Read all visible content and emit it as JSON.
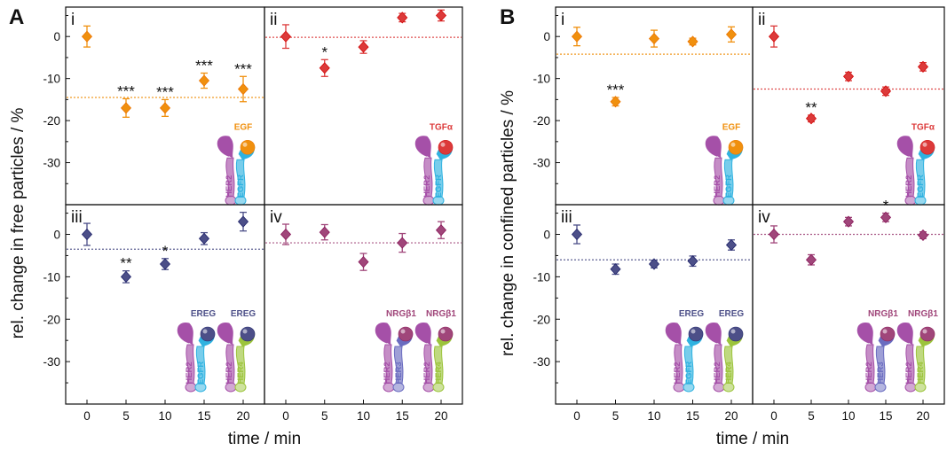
{
  "colors": {
    "EGF": "#f0900e",
    "TGF": "#dc3a3a",
    "EREG": "#4c4f88",
    "NRG": "#a0467a",
    "HER2": "#a550a8",
    "EGFR": "#2fb2e0",
    "HER3": "#6a6cc0",
    "HER4": "#9cc43c"
  },
  "figure": {
    "A": {
      "letter": "A",
      "ylabel": "rel. change in free particles / %"
    },
    "B": {
      "letter": "B",
      "ylabel": "rel. change in confined particles / %"
    },
    "xlabel": "time / min",
    "xticks": [
      0,
      5,
      10,
      15,
      20
    ],
    "yticks_top": [
      0,
      -10,
      -20,
      -30
    ],
    "yticks_bottom": [
      0,
      -10,
      -20,
      -30
    ],
    "receptor_labels": {
      "HER2": "HER2",
      "EGFR": "EGFR",
      "HER3": "HER3",
      "HER4": "HER4"
    }
  },
  "chart_data": [
    {
      "type": "scatter",
      "panel": "A",
      "roman": "i",
      "ligand": "EGF",
      "color_key": "EGF",
      "x": [
        0,
        5,
        10,
        15,
        20
      ],
      "y": [
        0,
        -17,
        -17,
        -10.5,
        -12.5
      ],
      "err": [
        2.5,
        2.2,
        2,
        1.8,
        3
      ],
      "significance": [
        "",
        "***",
        "***",
        "***",
        "***"
      ],
      "reference_line": -14.5,
      "ylim": [
        -40,
        7
      ],
      "receptors": [
        [
          "HER2",
          "EGFR"
        ]
      ]
    },
    {
      "type": "scatter",
      "panel": "A",
      "roman": "ii",
      "ligand": "TGFα",
      "color_key": "TGF",
      "x": [
        0,
        5,
        10,
        15,
        20
      ],
      "y": [
        0,
        -7.5,
        -2.5,
        4.5,
        5
      ],
      "err": [
        2.8,
        2,
        1.5,
        1,
        1.3
      ],
      "significance": [
        "",
        "*",
        "",
        "",
        ""
      ],
      "reference_line": -0.2,
      "ylim": [
        -40,
        7
      ],
      "receptors": [
        [
          "HER2",
          "EGFR"
        ]
      ]
    },
    {
      "type": "scatter",
      "panel": "A",
      "roman": "iii",
      "ligand": "EREG",
      "color_key": "EREG",
      "x": [
        0,
        5,
        10,
        15,
        20
      ],
      "y": [
        0,
        -10,
        -7,
        -1,
        3
      ],
      "err": [
        2.6,
        1.4,
        1.3,
        1.4,
        2.2
      ],
      "significance": [
        "",
        "**",
        "*",
        "",
        ""
      ],
      "reference_line": -3.5,
      "ylim": [
        -40,
        7
      ],
      "receptors": [
        [
          "HER2",
          "EGFR"
        ],
        [
          "HER2",
          "HER4"
        ]
      ]
    },
    {
      "type": "scatter",
      "panel": "A",
      "roman": "iv",
      "ligand": "NRGβ1",
      "color_key": "NRG",
      "x": [
        0,
        5,
        10,
        15,
        20
      ],
      "y": [
        0,
        0.5,
        -6.5,
        -2,
        1
      ],
      "err": [
        2.4,
        1.8,
        2,
        2.2,
        2
      ],
      "significance": [
        "",
        "",
        "",
        "",
        ""
      ],
      "reference_line": -2,
      "ylim": [
        -40,
        7
      ],
      "receptors": [
        [
          "HER2",
          "HER3"
        ],
        [
          "HER2",
          "HER4"
        ]
      ]
    },
    {
      "type": "scatter",
      "panel": "B",
      "roman": "i",
      "ligand": "EGF",
      "color_key": "EGF",
      "x": [
        0,
        5,
        10,
        15,
        20
      ],
      "y": [
        0,
        -15.5,
        -0.5,
        -1.2,
        0.5
      ],
      "err": [
        2.2,
        1,
        2,
        0.8,
        1.8
      ],
      "significance": [
        "",
        "***",
        "",
        "",
        ""
      ],
      "reference_line": -4.2,
      "ylim": [
        -40,
        7
      ],
      "receptors": [
        [
          "HER2",
          "EGFR"
        ]
      ]
    },
    {
      "type": "scatter",
      "panel": "B",
      "roman": "ii",
      "ligand": "TGFα",
      "color_key": "TGF",
      "x": [
        0,
        5,
        10,
        15,
        20
      ],
      "y": [
        0,
        -19.5,
        -9.5,
        -13,
        -7.2
      ],
      "err": [
        2.5,
        0.8,
        1,
        1,
        1
      ],
      "significance": [
        "",
        "**",
        "",
        "",
        ""
      ],
      "reference_line": -12.5,
      "ylim": [
        -40,
        7
      ],
      "receptors": [
        [
          "HER2",
          "EGFR"
        ]
      ]
    },
    {
      "type": "scatter",
      "panel": "B",
      "roman": "iii",
      "ligand": "EREG",
      "color_key": "EREG",
      "x": [
        0,
        5,
        10,
        15,
        20
      ],
      "y": [
        0,
        -8.2,
        -7,
        -6.3,
        -2.5
      ],
      "err": [
        2.2,
        1.2,
        0.9,
        1.2,
        1.2
      ],
      "significance": [
        "",
        "",
        "",
        "",
        ""
      ],
      "reference_line": -6,
      "ylim": [
        -40,
        7
      ],
      "receptors": [
        [
          "HER2",
          "EGFR"
        ],
        [
          "HER2",
          "HER4"
        ]
      ]
    },
    {
      "type": "scatter",
      "panel": "B",
      "roman": "iv",
      "ligand": "NRGβ1",
      "color_key": "NRG",
      "x": [
        0,
        5,
        10,
        15,
        20
      ],
      "y": [
        0,
        -6,
        3,
        4,
        -0.2
      ],
      "err": [
        2,
        1.2,
        1,
        1,
        0.8
      ],
      "significance": [
        "",
        "",
        "",
        "*",
        ""
      ],
      "reference_line": 0,
      "ylim": [
        -40,
        7
      ],
      "receptors": [
        [
          "HER2",
          "HER3"
        ],
        [
          "HER2",
          "HER4"
        ]
      ]
    }
  ]
}
